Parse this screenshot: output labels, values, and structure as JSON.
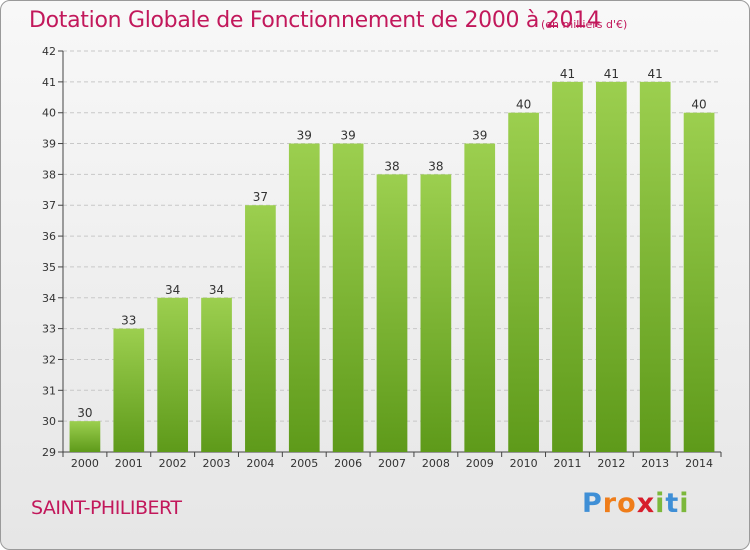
{
  "header": {
    "title": "Dotation Globale de Fonctionnement de 2000 à 2014",
    "unit": "(en milliers d'€)"
  },
  "footer": {
    "commune": "SAINT-PHILIBERT",
    "logo_text": "Proxiti"
  },
  "colors": {
    "bar_top": "#9ccf4f",
    "bar_bottom": "#5e9a1a",
    "title": "#c2185b"
  },
  "chart_data": {
    "type": "bar",
    "title": "Dotation Globale de Fonctionnement de 2000 à 2014",
    "subtitle": "(en milliers d'€)",
    "categories": [
      "2000",
      "2001",
      "2002",
      "2003",
      "2004",
      "2005",
      "2006",
      "2007",
      "2008",
      "2009",
      "2010",
      "2011",
      "2012",
      "2013",
      "2014"
    ],
    "values": [
      30,
      33,
      34,
      34,
      37,
      39,
      39,
      38,
      38,
      39,
      40,
      41,
      41,
      41,
      40
    ],
    "ylim": [
      29,
      42
    ],
    "yticks": [
      29,
      30,
      31,
      32,
      33,
      34,
      35,
      36,
      37,
      38,
      39,
      40,
      41,
      42
    ],
    "grid": true,
    "xlabel": "",
    "ylabel": ""
  }
}
